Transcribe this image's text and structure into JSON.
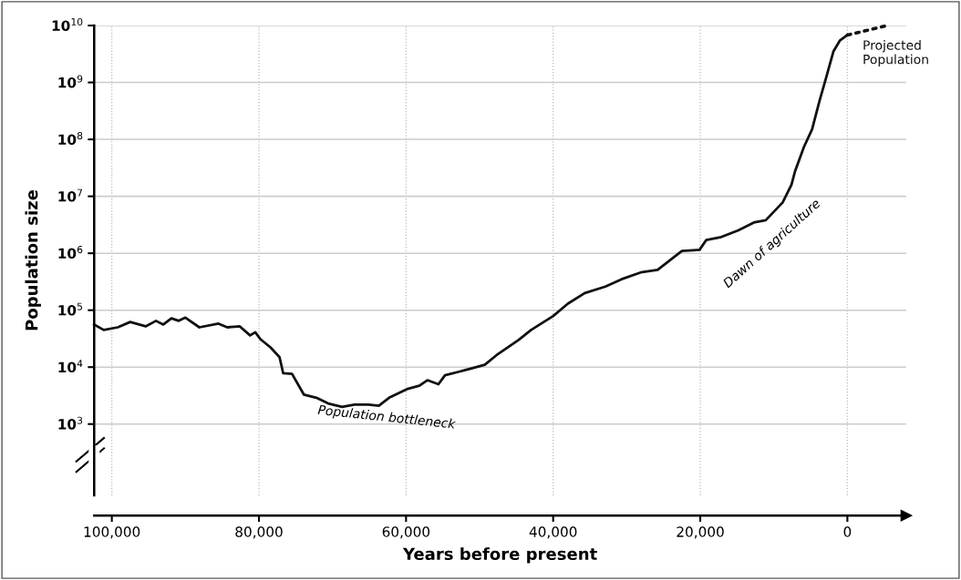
{
  "chart_data": {
    "type": "line",
    "xlabel": "Years before present",
    "ylabel": "Population size",
    "log": "y",
    "grid": true,
    "marker": "none",
    "xlim": [
      102400,
      -8000
    ],
    "xticks": [
      {
        "value": 100000,
        "label": "100,000"
      },
      {
        "value": 80000,
        "label": "80,000"
      },
      {
        "value": 60000,
        "label": "60,000"
      },
      {
        "value": 40000,
        "label": "40,000"
      },
      {
        "value": 20000,
        "label": "20,000"
      },
      0
    ],
    "ylim": [
      56,
      10000000000
    ],
    "yticks": [
      {
        "value": 1000,
        "label": "10$^{3}$"
      },
      {
        "value": 10000,
        "label": "10$^{4}$"
      },
      {
        "value": 100000,
        "label": "10$^{5}$"
      },
      {
        "value": 1000000,
        "label": "10$^{6}$"
      },
      {
        "value": 10000000,
        "label": "10$^{7}$"
      },
      {
        "value": 100000000,
        "label": "10$^{8}$"
      },
      {
        "value": 1000000000,
        "label": "10$^{9}$"
      },
      {
        "value": 10000000000,
        "label": "10$^{10}$"
      }
    ],
    "series": [
      {
        "color": "#111111",
        "line_style": "solid",
        "x": [
          102400,
          101100,
          99200,
          97500,
          95400,
          94000,
          93000,
          91900,
          90900,
          90000,
          88100,
          85500,
          84300,
          82600,
          81200,
          80500,
          79800,
          78400,
          77200,
          76700,
          75500,
          73900,
          72200,
          70600,
          68700,
          67000,
          65100,
          63700,
          62300,
          59900,
          58200,
          57100,
          55600,
          54700,
          52800,
          51100,
          49300,
          47500,
          44700,
          43000,
          40000,
          38000,
          35700,
          32900,
          30700,
          28100,
          25800,
          22500,
          20100,
          19200,
          17300,
          14900,
          12600,
          11100,
          8800,
          7600,
          7100,
          5900,
          4800,
          3800,
          2900,
          1900,
          1000,
          0
        ],
        "values": [
          56000,
          45000,
          50000,
          62000,
          52000,
          65000,
          56000,
          72000,
          65000,
          74000,
          50000,
          58000,
          50000,
          52000,
          36000,
          41000,
          31000,
          22000,
          15000,
          7800,
          7600,
          3300,
          2900,
          2300,
          2000,
          2200,
          2200,
          2100,
          2900,
          4100,
          4700,
          5900,
          5000,
          7200,
          8300,
          9500,
          11000,
          17000,
          30000,
          45000,
          79000,
          130000,
          200000,
          260000,
          350000,
          460000,
          510000,
          1100000,
          1150000,
          1700000,
          1900000,
          2500000,
          3500000,
          3800000,
          7800000,
          16000000,
          28000000,
          74000000,
          150000000,
          470000000,
          1200000000,
          3500000000,
          5500000000,
          6800000000
        ]
      },
      {
        "name": "Projected\nPopulation",
        "color": "#111111",
        "line_style": "dotted",
        "x": [
          0,
          -1600,
          -5400
        ],
        "values": [
          6800000000,
          7600000000,
          10000000000
        ]
      }
    ],
    "annotations": [
      "Population bottleneck",
      "Dawn of agriculture"
    ]
  }
}
